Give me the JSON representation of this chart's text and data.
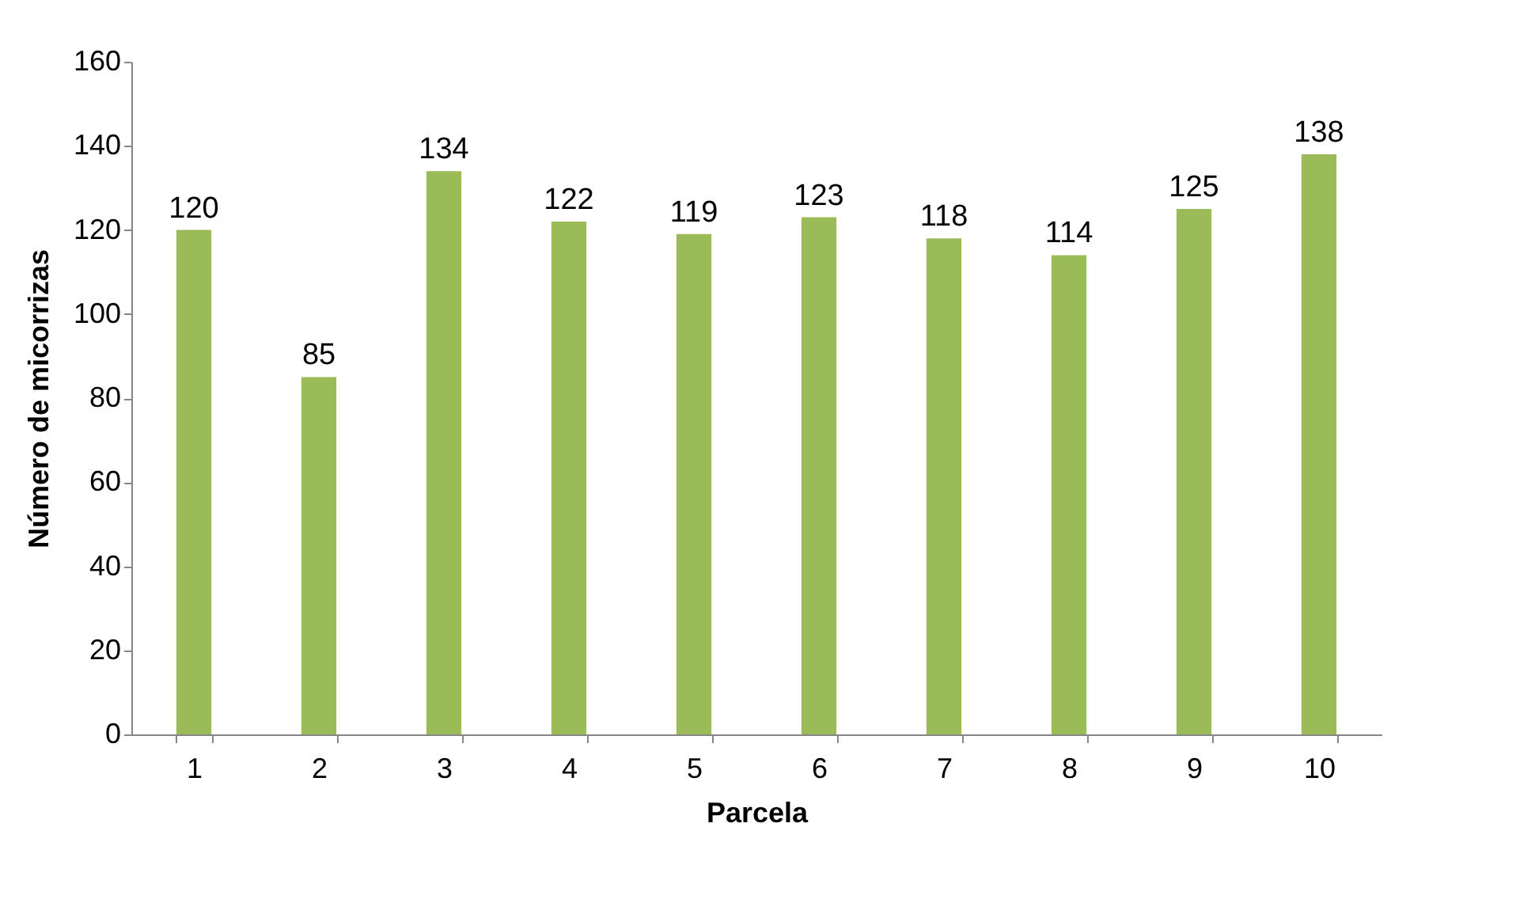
{
  "chart_data": {
    "type": "bar",
    "xlabel": "Parcela",
    "ylabel": "Número de micorrizas",
    "categories": [
      "1",
      "2",
      "3",
      "4",
      "5",
      "6",
      "7",
      "8",
      "9",
      "10"
    ],
    "values": [
      120,
      85,
      134,
      122,
      119,
      123,
      118,
      114,
      125,
      138
    ],
    "color": "#9bbb59",
    "ylim": [
      0,
      160
    ],
    "yticks": [
      0,
      20,
      40,
      60,
      80,
      100,
      120,
      140,
      160
    ],
    "grid": false,
    "data_labels": true
  }
}
